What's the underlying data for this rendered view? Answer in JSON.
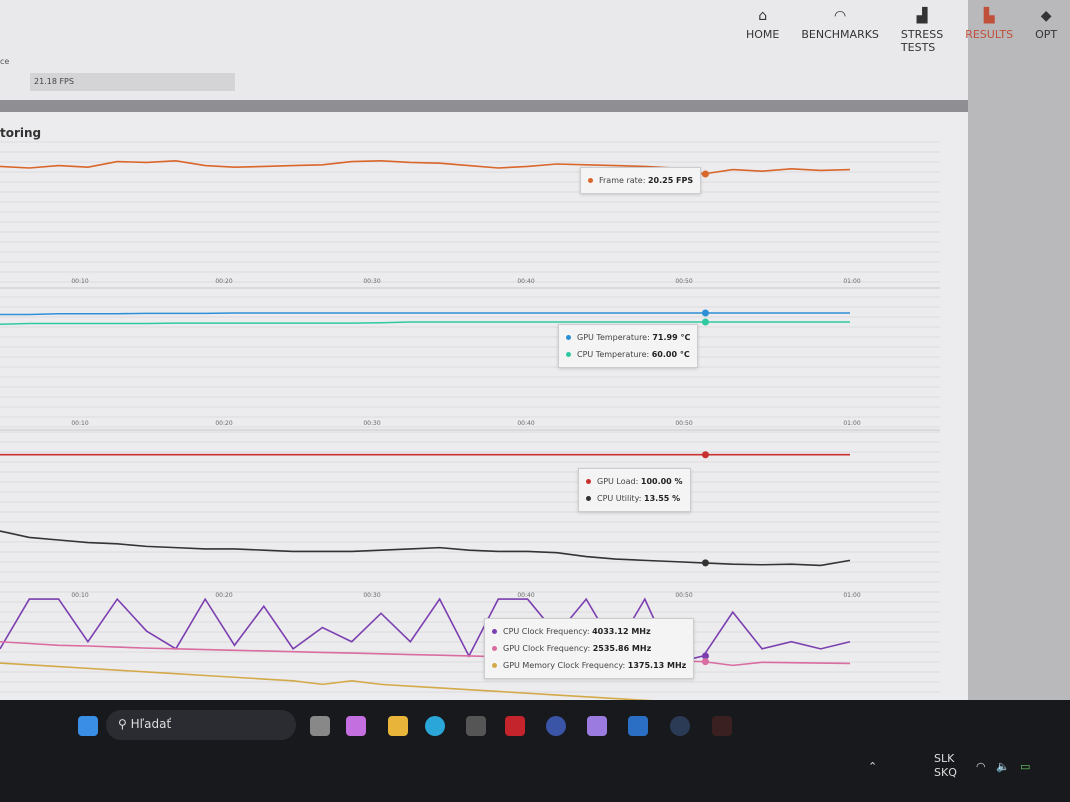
{
  "nav": [
    {
      "label": "HOME",
      "icon": "home-icon"
    },
    {
      "label": "BENCHMARKS",
      "icon": "gauge-icon"
    },
    {
      "label": "STRESS TESTS",
      "icon": "bars-icon"
    },
    {
      "label": "RESULTS",
      "icon": "results-icon",
      "active": true
    },
    {
      "label": "OPT",
      "icon": "options-icon"
    }
  ],
  "score": {
    "label": "ce",
    "value": "21.18 FPS"
  },
  "section_title": "toring",
  "time_ticks": [
    "00:10",
    "00:20",
    "00:30",
    "00:40",
    "00:50",
    "01:00"
  ],
  "charts": [
    {
      "series": [
        {
          "name": "Frame rate",
          "value": "20.25 FPS",
          "color": "#d9662a",
          "values": [
            21.2,
            21.0,
            21.3,
            21.1,
            21.8,
            21.7,
            21.9,
            21.3,
            21.1,
            21.2,
            21.3,
            21.4,
            21.8,
            21.9,
            21.7,
            21.6,
            21.3,
            21.0,
            21.2,
            21.5,
            21.4,
            21.3,
            21.2,
            21.0,
            20.25,
            20.8,
            20.6,
            20.9,
            20.7,
            20.8
          ]
        }
      ],
      "range": [
        18,
        23
      ]
    },
    {
      "series": [
        {
          "name": "GPU Temperature",
          "value": "71.99 °C",
          "color": "#2d8fd6",
          "values": [
            70,
            70,
            71,
            71,
            71,
            71.5,
            71.5,
            71.5,
            72,
            72,
            72,
            72,
            72,
            72,
            72,
            72,
            72,
            72,
            72,
            72,
            72,
            72,
            72,
            72,
            71.99,
            72,
            72,
            72,
            72,
            72
          ]
        },
        {
          "name": "CPU Temperature",
          "value": "60.00 °C",
          "color": "#2ec9a0",
          "values": [
            57,
            58,
            58,
            58,
            58,
            58,
            58.5,
            58.5,
            58.5,
            58.5,
            58.5,
            58.5,
            58.5,
            59,
            60,
            60,
            60,
            60,
            60,
            60,
            60,
            60,
            60,
            60,
            60,
            60,
            60,
            60,
            60,
            60
          ]
        }
      ],
      "range": [
        40,
        80
      ]
    },
    {
      "series": [
        {
          "name": "GPU Load",
          "value": "100.00 %",
          "color": "#c93030",
          "values": [
            100,
            100,
            100,
            100,
            100,
            100,
            100,
            100,
            100,
            100,
            100,
            100,
            100,
            100,
            100,
            100,
            100,
            100,
            100,
            100,
            100,
            100,
            100,
            100,
            100,
            100,
            100,
            100,
            100,
            100
          ]
        },
        {
          "name": "CPU Utility",
          "value": "13.55 %",
          "color": "#333333",
          "values": [
            40,
            35,
            33,
            31,
            30,
            28,
            27,
            26,
            26,
            25,
            24,
            24,
            24,
            25,
            26,
            27,
            25,
            24,
            24,
            23,
            20,
            18,
            17,
            16,
            15,
            14,
            13.55,
            14,
            13,
            17
          ]
        }
      ],
      "range": [
        0,
        110
      ]
    },
    {
      "series": [
        {
          "name": "CPU Clock Frequency",
          "value": "4033.12 MHz",
          "color": "#7b3fb0",
          "values": [
            3000,
            4400,
            4400,
            3200,
            4400,
            3500,
            3000,
            4400,
            3100,
            4200,
            3000,
            3600,
            3200,
            4000,
            3200,
            4400,
            2800,
            4400,
            4400,
            3400,
            4400,
            3000,
            4400,
            2600,
            2800,
            4033,
            3000,
            3200,
            3000,
            3200
          ]
        },
        {
          "name": "GPU Clock Frequency",
          "value": "2535.86 MHz",
          "color": "#d96ca0",
          "values": [
            3200,
            3150,
            3100,
            3080,
            3050,
            3020,
            3000,
            2980,
            2960,
            2940,
            2920,
            2900,
            2880,
            2860,
            2840,
            2820,
            2800,
            2780,
            2760,
            2740,
            2720,
            2700,
            2680,
            2660,
            2640,
            2535,
            2620,
            2610,
            2600,
            2590
          ]
        },
        {
          "name": "GPU Memory Clock Frequency",
          "value": "1375.13 MHz",
          "color": "#d4a94a",
          "values": [
            2600,
            2550,
            2500,
            2450,
            2400,
            2350,
            2300,
            2250,
            2200,
            2150,
            2100,
            2000,
            2100,
            2000,
            1950,
            1900,
            1850,
            1800,
            1750,
            1700,
            1650,
            1600,
            1550,
            1500,
            1450,
            1375,
            1350,
            1300,
            1280,
            1250
          ]
        }
      ],
      "range": [
        800,
        4600
      ]
    }
  ],
  "taskbar": {
    "search": "Hľadať",
    "lang1": "SLK",
    "lang2": "SKQ"
  }
}
